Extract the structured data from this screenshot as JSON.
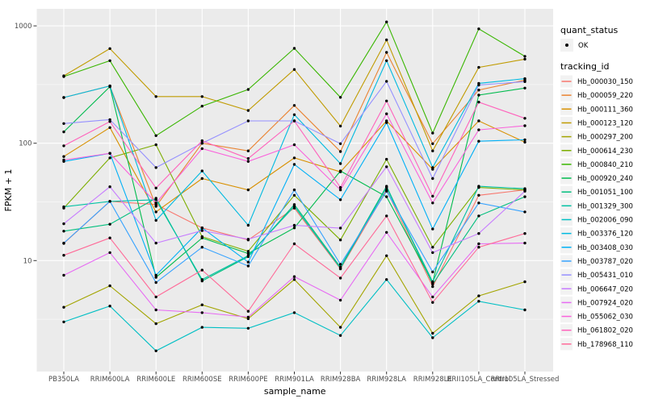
{
  "chart_data": {
    "type": "line",
    "title": "",
    "xlabel": "sample_name",
    "ylabel": "FPKM + 1",
    "y_scale": "log10",
    "y_ticks": [
      10,
      100,
      1000
    ],
    "y_minor_ticks": [
      3.162,
      31.62,
      316.2
    ],
    "ylim": [
      1.15,
      1400
    ],
    "grid": true,
    "legend_position": "right",
    "panel_bg": "#EBEBEB",
    "grid_color": "#FFFFFF",
    "legend_key_bg": "#F2F2F2",
    "point_color": "#000000",
    "axis_text_color": "#4D4D4D",
    "title_text_color": "#000000",
    "legend": {
      "quant_status_title": "quant_status",
      "quant_status_items": [
        {
          "label": "OK",
          "shape": "point"
        }
      ],
      "tracking_title": "tracking_id"
    },
    "categories": [
      "PB350LA",
      "RRIM600LA",
      "RRIM600LE",
      "RRIM600SE",
      "RRIM600PE",
      "RRIM901LA",
      "RRIM928BA",
      "RRIM928LA",
      "RRIM928LE",
      "RRII105LA_Control",
      "RRII105LA_Stressed"
    ],
    "series": [
      {
        "name": "Hb_000030_150",
        "color": "#F8766D",
        "values": [
          14,
          32,
          30,
          19,
          15,
          28,
          8.5,
          40,
          6.0,
          36,
          40
        ]
      },
      {
        "name": "Hb_000059_220",
        "color": "#EA8331",
        "values": [
          245,
          308,
          29,
          100,
          86,
          210,
          85,
          594,
          99,
          284,
          345
        ]
      },
      {
        "name": "Hb_000111_360",
        "color": "#D89000",
        "values": [
          77,
          136,
          26,
          50,
          40,
          75,
          57,
          155,
          60,
          155,
          102
        ]
      },
      {
        "name": "Hb_000123_120",
        "color": "#C09B00",
        "values": [
          375,
          640,
          250,
          250,
          190,
          425,
          140,
          760,
          86,
          443,
          520
        ]
      },
      {
        "name": "Hb_000297_200",
        "color": "#A3A500",
        "values": [
          4.0,
          6.1,
          2.9,
          4.2,
          3.2,
          6.9,
          2.7,
          11,
          2.4,
          5.0,
          6.6
        ]
      },
      {
        "name": "Hb_000614_230",
        "color": "#7CAE00",
        "values": [
          28,
          75,
          97,
          16,
          12,
          36,
          15,
          73,
          13,
          42,
          40
        ]
      },
      {
        "name": "Hb_000840_210",
        "color": "#39B600",
        "values": [
          370,
          505,
          116,
          207,
          287,
          643,
          246,
          1080,
          122,
          943,
          550
        ]
      },
      {
        "name": "Hb_000920_240",
        "color": "#00BB4E",
        "values": [
          125,
          303,
          7.2,
          15.6,
          11.5,
          19,
          58,
          35,
          6.5,
          257,
          295
        ]
      },
      {
        "name": "Hb_001051_100",
        "color": "#00BF7D",
        "values": [
          17.8,
          20.4,
          34,
          6.7,
          10.8,
          30,
          8.8,
          43,
          6.3,
          24,
          35
        ]
      },
      {
        "name": "Hb_001329_300",
        "color": "#00C1A3",
        "values": [
          28.7,
          31.9,
          33,
          6.9,
          11,
          29,
          8.6,
          42,
          6.6,
          43,
          41
        ]
      },
      {
        "name": "Hb_002006_090",
        "color": "#00BFC4",
        "values": [
          3.0,
          4.1,
          1.7,
          2.7,
          2.65,
          3.6,
          2.3,
          6.9,
          2.2,
          4.5,
          3.8
        ]
      },
      {
        "name": "Hb_003376_120",
        "color": "#00BAE0",
        "values": [
          245,
          308,
          22,
          58,
          20,
          175,
          67,
          505,
          62,
          324,
          355
        ]
      },
      {
        "name": "Hb_003408_030",
        "color": "#00B0F6",
        "values": [
          70,
          82,
          7.5,
          19,
          9.7,
          66,
          33,
          150,
          18.6,
          104,
          107
        ]
      },
      {
        "name": "Hb_003787_020",
        "color": "#35A2FF",
        "values": [
          14.1,
          32,
          6.5,
          13,
          9.0,
          40,
          9.3,
          39,
          8.0,
          31,
          26
        ]
      },
      {
        "name": "Hb_005431_010",
        "color": "#9590FF",
        "values": [
          147,
          159,
          62,
          100,
          155,
          155,
          99,
          337,
          50,
          313,
          335
        ]
      },
      {
        "name": "Hb_006647_020",
        "color": "#C77CFF",
        "values": [
          20.6,
          42.6,
          14.1,
          18,
          15.2,
          20,
          18.9,
          63,
          11.7,
          17,
          39
        ]
      },
      {
        "name": "Hb_007924_020",
        "color": "#E76BF3",
        "values": [
          7.5,
          11.7,
          3.8,
          3.6,
          3.3,
          7.3,
          4.6,
          17.4,
          4.9,
          13.9,
          14.1
        ]
      },
      {
        "name": "Hb_055062_030",
        "color": "#FA62DB",
        "values": [
          72,
          82,
          31,
          90,
          70,
          97,
          40,
          178,
          31,
          130,
          141
        ]
      },
      {
        "name": "Hb_061802_020",
        "color": "#FF62BC",
        "values": [
          95,
          153,
          41.5,
          105,
          74,
          155,
          42,
          229,
          35.4,
          224,
          163
        ]
      },
      {
        "name": "Hb_178968_110",
        "color": "#FF6A98",
        "values": [
          11.1,
          15.6,
          4.9,
          8.3,
          3.7,
          13.9,
          7.1,
          24,
          4.4,
          13,
          17
        ]
      }
    ]
  }
}
